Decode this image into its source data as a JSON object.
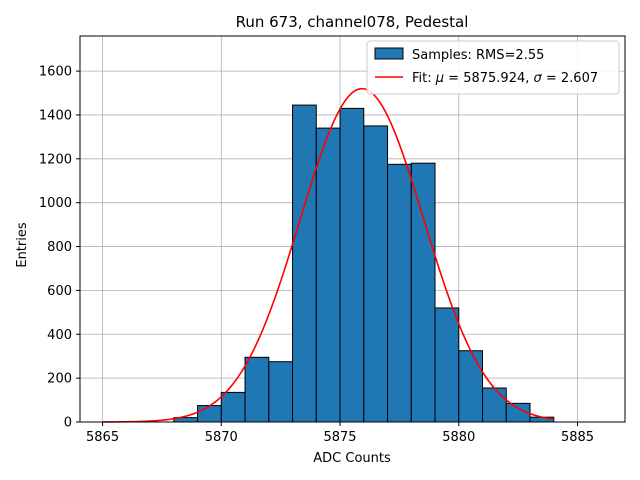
{
  "chart_data": {
    "type": "bar",
    "title": "Run 673, channel078, Pedestal",
    "xlabel": "ADC Counts",
    "ylabel": "Entries",
    "xlim": [
      5864.05,
      5887.0
    ],
    "ylim": [
      0,
      1760
    ],
    "xticks": [
      5865,
      5870,
      5875,
      5880,
      5885
    ],
    "yticks": [
      0,
      200,
      400,
      600,
      800,
      1000,
      1200,
      1400,
      1600
    ],
    "grid": true,
    "colors": {
      "bar_fill": "#1f77b4",
      "bar_edge": "#000000",
      "fit_line": "#ff0000",
      "grid": "#b0b0b0"
    },
    "histogram": {
      "name": "Samples: RMS=2.55",
      "bins": [
        {
          "x0": 5868,
          "x1": 5869,
          "count": 20
        },
        {
          "x0": 5869,
          "x1": 5870,
          "count": 75
        },
        {
          "x0": 5870,
          "x1": 5871,
          "count": 135
        },
        {
          "x0": 5871,
          "x1": 5872,
          "count": 295
        },
        {
          "x0": 5872,
          "x1": 5873,
          "count": 275
        },
        {
          "x0": 5873,
          "x1": 5874,
          "count": 1445
        },
        {
          "x0": 5874,
          "x1": 5875,
          "count": 1340
        },
        {
          "x0": 5875,
          "x1": 5876,
          "count": 1430
        },
        {
          "x0": 5876,
          "x1": 5877,
          "count": 1350
        },
        {
          "x0": 5877,
          "x1": 5878,
          "count": 1175
        },
        {
          "x0": 5878,
          "x1": 5879,
          "count": 1180
        },
        {
          "x0": 5879,
          "x1": 5880,
          "count": 520
        },
        {
          "x0": 5880,
          "x1": 5881,
          "count": 325
        },
        {
          "x0": 5881,
          "x1": 5882,
          "count": 155
        },
        {
          "x0": 5882,
          "x1": 5883,
          "count": 85
        },
        {
          "x0": 5883,
          "x1": 5884,
          "count": 22
        }
      ]
    },
    "fit": {
      "name": "Fit: μ = 5875.924, σ = 2.607",
      "mu": 5875.924,
      "sigma": 2.607,
      "amplitude": 1520,
      "x_range": [
        5865,
        5884
      ]
    },
    "legend": {
      "placement": "top-right",
      "entries": [
        {
          "kind": "patch",
          "prefix": "Samples: RMS=2.55"
        },
        {
          "kind": "line",
          "prefix": "Fit: ",
          "mu_symbol": "μ",
          "mu_text": " = 5875.924, ",
          "sigma_symbol": "σ",
          "sigma_text": " = 2.607"
        }
      ]
    }
  }
}
